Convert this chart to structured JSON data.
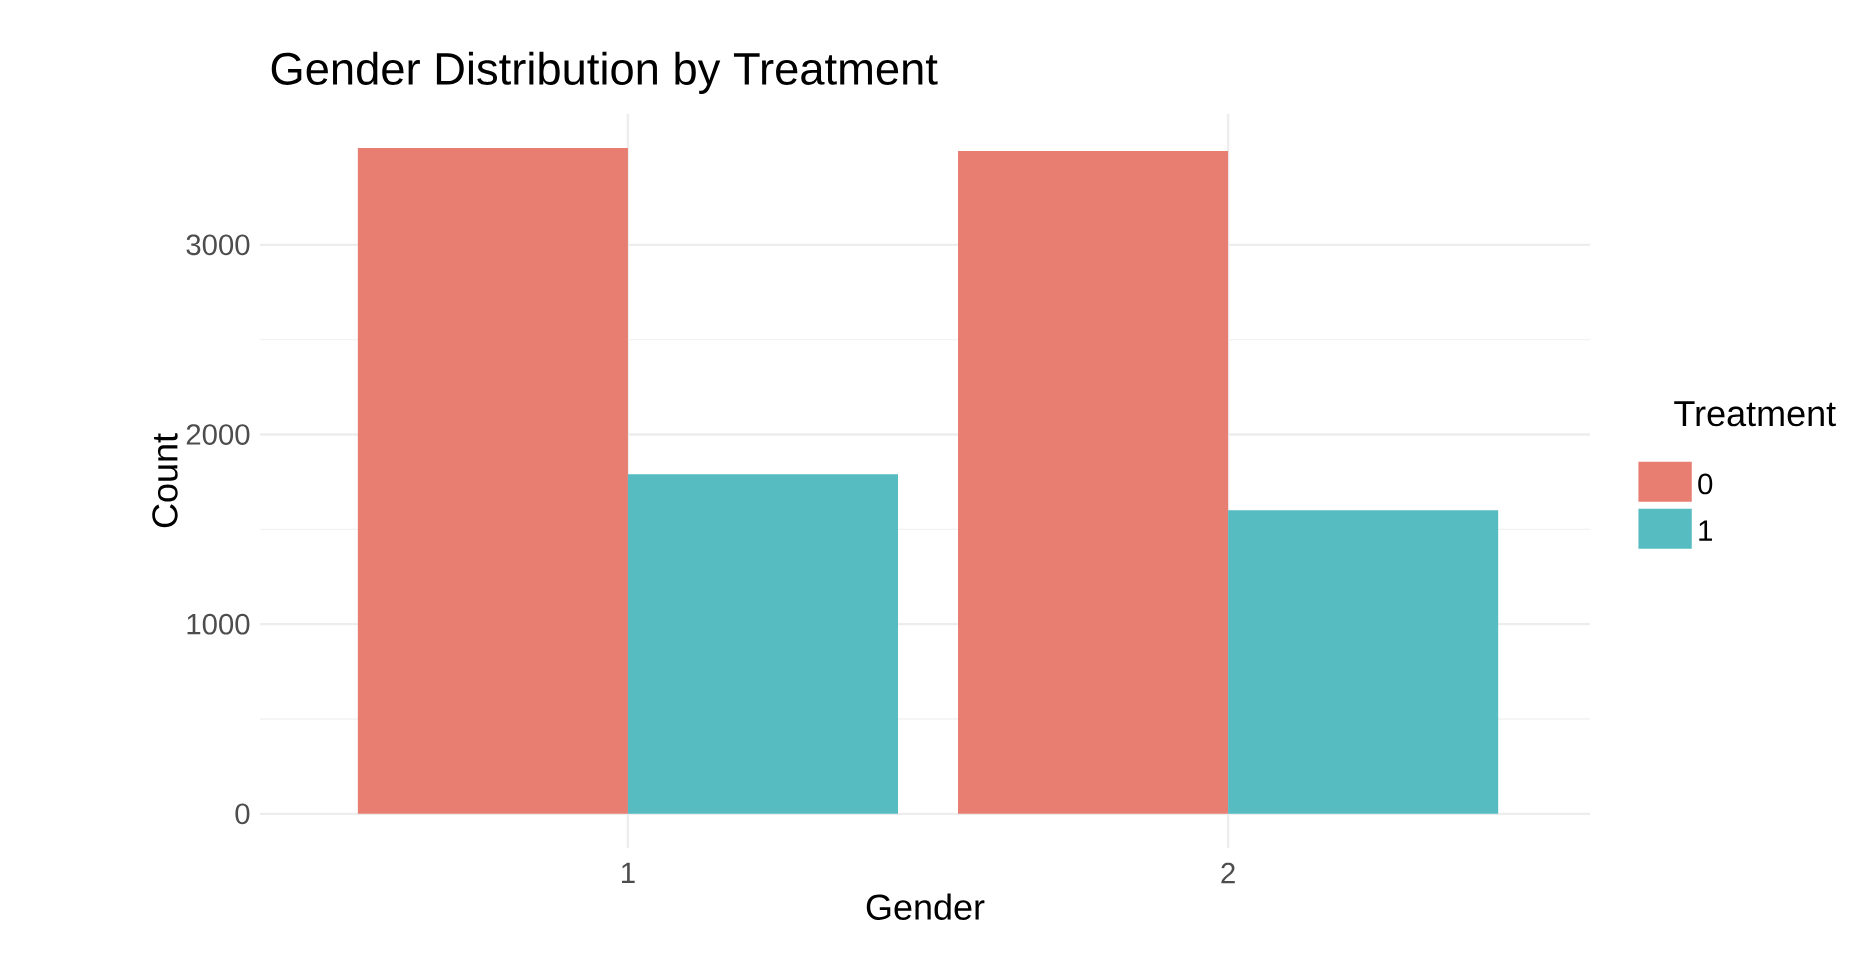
{
  "chart_data": {
    "type": "bar",
    "title": "Gender Distribution by Treatment",
    "xlabel": "Gender",
    "ylabel": "Count",
    "legend_title": "Treatment",
    "categories": [
      "1",
      "2"
    ],
    "series": [
      {
        "name": "0",
        "color": "#e87d72",
        "values": [
          3510,
          3495
        ]
      },
      {
        "name": "1",
        "color": "#56bcc2",
        "values": [
          1790,
          1600
        ]
      }
    ],
    "ylim": [
      -180,
      3690
    ],
    "yticks": [
      0,
      1000,
      2000,
      3000
    ],
    "grid": true,
    "legend": "right"
  }
}
